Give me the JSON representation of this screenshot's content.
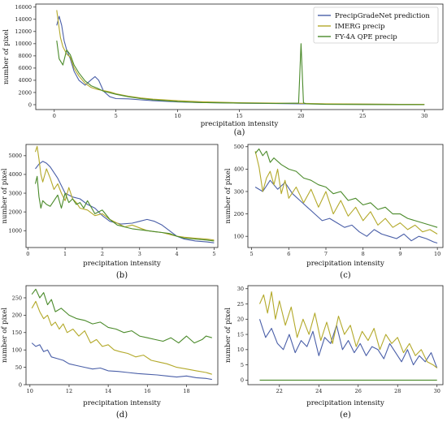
{
  "series_colors": {
    "PrecipGradeNet prediction": "#4a5fa8",
    "IMERG precip": "#b3a92a",
    "FY-4A QPE precip": "#4a8a2a"
  },
  "chart_data": [
    {
      "id": "a",
      "type": "line",
      "panel_label": "(a)",
      "xlabel": "precipitation intensity",
      "ylabel": "number of pixel",
      "xlim": [
        -1.5,
        31.5
      ],
      "ylim": [
        -800,
        16500
      ],
      "xticks": [
        0,
        5,
        10,
        15,
        20,
        25,
        30
      ],
      "yticks": [
        0,
        2000,
        4000,
        6000,
        8000,
        10000,
        12000,
        14000,
        16000
      ],
      "legend": {
        "placement": "top-right",
        "entries": [
          "PrecipGradeNet prediction",
          "IMERG precip",
          "FY-4A QPE precip"
        ]
      },
      "series": [
        {
          "name": "PrecipGradeNet prediction",
          "x": [
            0.2,
            0.4,
            0.6,
            0.8,
            1.0,
            1.3,
            1.6,
            2.0,
            2.5,
            3.0,
            3.3,
            3.6,
            4.0,
            4.5,
            5.0,
            6,
            7,
            8,
            10,
            12,
            15,
            18,
            20,
            22,
            25,
            28,
            30
          ],
          "y": [
            13000,
            14500,
            13000,
            10500,
            9000,
            7500,
            5500,
            4000,
            3200,
            4100,
            4600,
            4000,
            2200,
            1300,
            1000,
            950,
            800,
            650,
            450,
            350,
            250,
            180,
            150,
            120,
            80,
            50,
            40
          ]
        },
        {
          "name": "IMERG precip",
          "x": [
            0.2,
            0.3,
            0.5,
            0.7,
            1.0,
            1.3,
            1.6,
            2.0,
            2.5,
            3.0,
            3.5,
            4.0,
            4.5,
            5.0,
            6,
            7,
            8,
            10,
            12,
            15,
            18,
            20,
            22,
            25,
            28,
            30
          ],
          "y": [
            15500,
            14000,
            11000,
            9500,
            8300,
            7800,
            6000,
            4700,
            3500,
            2800,
            2500,
            2300,
            2100,
            1800,
            1400,
            1100,
            900,
            650,
            480,
            330,
            250,
            220,
            150,
            100,
            70,
            50
          ]
        },
        {
          "name": "FY-4A QPE precip",
          "x": [
            0.2,
            0.4,
            0.7,
            1.0,
            1.3,
            1.6,
            2.0,
            2.5,
            3.0,
            3.5,
            4.0,
            5,
            6,
            7,
            8,
            10,
            12,
            15,
            18,
            19.8,
            20.0,
            20.2,
            20.4,
            22,
            25,
            28,
            30
          ],
          "y": [
            10500,
            7500,
            6500,
            9000,
            8200,
            6500,
            5200,
            3900,
            3100,
            2700,
            2200,
            1700,
            1300,
            1000,
            800,
            500,
            350,
            250,
            200,
            250,
            10000,
            300,
            150,
            50,
            20,
            10,
            5
          ]
        }
      ]
    },
    {
      "id": "b",
      "type": "line",
      "panel_label": "(b)",
      "xlabel": "precipitation intensity",
      "ylabel": "number of pixel",
      "xlim": [
        -0.05,
        5.1
      ],
      "ylim": [
        100,
        5600
      ],
      "xticks": [
        0,
        1,
        2,
        3,
        4,
        5
      ],
      "yticks": [
        1000,
        2000,
        3000,
        4000,
        5000
      ],
      "series": [
        {
          "name": "PrecipGradeNet prediction",
          "x": [
            0.2,
            0.3,
            0.4,
            0.5,
            0.6,
            0.8,
            1.0,
            1.2,
            1.4,
            1.6,
            1.8,
            2.0,
            2.2,
            2.5,
            2.8,
            3.0,
            3.2,
            3.4,
            3.6,
            3.8,
            4.0,
            4.2,
            4.5,
            4.8,
            5.0
          ],
          "y": [
            4300,
            4550,
            4700,
            4600,
            4400,
            3800,
            3000,
            2800,
            2700,
            2400,
            2200,
            1800,
            1500,
            1350,
            1400,
            1500,
            1600,
            1500,
            1300,
            1000,
            700,
            550,
            450,
            400,
            350
          ]
        },
        {
          "name": "IMERG precip",
          "x": [
            0.2,
            0.25,
            0.3,
            0.35,
            0.4,
            0.5,
            0.6,
            0.7,
            0.8,
            0.9,
            1.0,
            1.1,
            1.2,
            1.3,
            1.4,
            1.6,
            1.8,
            2.0,
            2.2,
            2.4,
            2.6,
            2.8,
            3.0,
            3.2,
            3.4,
            3.6,
            3.8,
            4.0,
            4.2,
            4.5,
            4.8,
            5.0
          ],
          "y": [
            5200,
            5500,
            4800,
            4000,
            3600,
            4300,
            3800,
            3200,
            3500,
            3000,
            2600,
            3300,
            2700,
            2500,
            2200,
            2100,
            1800,
            1900,
            1600,
            1400,
            1200,
            1300,
            1150,
            1000,
            950,
            900,
            800,
            700,
            650,
            600,
            550,
            500
          ]
        },
        {
          "name": "FY-4A QPE precip",
          "x": [
            0.2,
            0.25,
            0.3,
            0.35,
            0.4,
            0.5,
            0.6,
            0.7,
            0.8,
            0.9,
            1.0,
            1.1,
            1.2,
            1.3,
            1.4,
            1.5,
            1.6,
            1.8,
            2.0,
            2.2,
            2.4,
            2.6,
            2.8,
            3.0,
            3.2,
            3.4,
            3.6,
            3.8,
            4.0,
            4.2,
            4.5,
            4.8,
            5.0
          ],
          "y": [
            3500,
            3900,
            2800,
            2200,
            2600,
            2400,
            2300,
            2600,
            2900,
            2200,
            3000,
            2500,
            2700,
            2400,
            2500,
            2200,
            2600,
            1900,
            2100,
            1600,
            1300,
            1200,
            1100,
            1050,
            1000,
            950,
            900,
            850,
            700,
            600,
            550,
            500,
            450
          ]
        }
      ]
    },
    {
      "id": "c",
      "type": "line",
      "panel_label": "(c)",
      "xlabel": "precipitation intensity",
      "ylabel": "number of pixel",
      "xlim": [
        4.9,
        10.15
      ],
      "ylim": [
        50,
        510
      ],
      "xticks": [
        5,
        6,
        7,
        8,
        9,
        10
      ],
      "yticks": [
        100,
        200,
        300,
        400,
        500
      ],
      "series": [
        {
          "name": "PrecipGradeNet prediction",
          "x": [
            5.1,
            5.3,
            5.5,
            5.7,
            5.9,
            6.1,
            6.3,
            6.5,
            6.7,
            6.9,
            7.1,
            7.3,
            7.5,
            7.7,
            7.9,
            8.1,
            8.3,
            8.5,
            8.7,
            8.9,
            9.1,
            9.3,
            9.5,
            9.7,
            9.9,
            10.0
          ],
          "y": [
            320,
            300,
            350,
            310,
            340,
            290,
            260,
            230,
            200,
            170,
            180,
            160,
            140,
            150,
            120,
            100,
            130,
            110,
            100,
            90,
            110,
            80,
            100,
            90,
            75,
            70
          ]
        },
        {
          "name": "IMERG precip",
          "x": [
            5.1,
            5.2,
            5.3,
            5.4,
            5.5,
            5.6,
            5.7,
            5.8,
            5.9,
            6.0,
            6.2,
            6.4,
            6.6,
            6.8,
            7.0,
            7.2,
            7.4,
            7.6,
            7.8,
            8.0,
            8.2,
            8.4,
            8.6,
            8.8,
            9.0,
            9.2,
            9.4,
            9.6,
            9.8,
            10.0
          ],
          "y": [
            480,
            410,
            300,
            360,
            390,
            330,
            400,
            290,
            350,
            270,
            320,
            250,
            310,
            230,
            300,
            200,
            260,
            190,
            230,
            170,
            210,
            150,
            180,
            140,
            160,
            130,
            150,
            120,
            130,
            110
          ]
        },
        {
          "name": "FY-4A QPE precip",
          "x": [
            5.1,
            5.2,
            5.3,
            5.4,
            5.5,
            5.6,
            5.8,
            6.0,
            6.2,
            6.4,
            6.6,
            6.8,
            7.0,
            7.2,
            7.4,
            7.6,
            7.8,
            8.0,
            8.2,
            8.4,
            8.6,
            8.8,
            9.0,
            9.2,
            9.4,
            9.6,
            9.8,
            10.0
          ],
          "y": [
            470,
            490,
            460,
            480,
            430,
            450,
            420,
            400,
            390,
            360,
            350,
            330,
            320,
            290,
            300,
            260,
            270,
            240,
            250,
            220,
            230,
            200,
            200,
            180,
            170,
            160,
            150,
            140
          ]
        }
      ]
    },
    {
      "id": "d",
      "type": "line",
      "panel_label": "(d)",
      "xlabel": "precipitation intensity",
      "ylabel": "number of pixel",
      "xlim": [
        9.8,
        19.6
      ],
      "ylim": [
        0,
        285
      ],
      "xticks": [
        10,
        12,
        14,
        16,
        18
      ],
      "yticks": [
        0,
        50,
        100,
        150,
        200,
        250
      ],
      "series": [
        {
          "name": "PrecipGradeNet prediction",
          "x": [
            10.1,
            10.3,
            10.5,
            10.7,
            10.9,
            11.1,
            11.4,
            11.7,
            12.0,
            12.4,
            12.8,
            13.2,
            13.6,
            14.0,
            14.5,
            15.0,
            15.5,
            16.0,
            16.5,
            17.0,
            17.5,
            18.0,
            18.5,
            19.0,
            19.3
          ],
          "y": [
            120,
            110,
            115,
            95,
            100,
            80,
            75,
            70,
            60,
            55,
            50,
            45,
            48,
            40,
            38,
            35,
            32,
            30,
            28,
            25,
            22,
            25,
            20,
            18,
            15
          ]
        },
        {
          "name": "IMERG precip",
          "x": [
            10.1,
            10.3,
            10.5,
            10.7,
            10.9,
            11.1,
            11.3,
            11.5,
            11.7,
            11.9,
            12.2,
            12.5,
            12.8,
            13.1,
            13.4,
            13.7,
            14.0,
            14.3,
            14.6,
            15.0,
            15.4,
            15.8,
            16.2,
            16.6,
            17.0,
            17.5,
            18.0,
            18.5,
            19.0,
            19.3
          ],
          "y": [
            220,
            240,
            210,
            190,
            200,
            170,
            180,
            160,
            175,
            150,
            160,
            140,
            155,
            120,
            130,
            110,
            115,
            100,
            95,
            90,
            80,
            85,
            70,
            65,
            60,
            50,
            45,
            40,
            35,
            30
          ]
        },
        {
          "name": "FY-4A QPE precip",
          "x": [
            10.1,
            10.3,
            10.5,
            10.7,
            10.9,
            11.1,
            11.3,
            11.6,
            12.0,
            12.4,
            12.8,
            13.2,
            13.6,
            14.0,
            14.4,
            14.8,
            15.2,
            15.6,
            16.0,
            16.4,
            16.8,
            17.2,
            17.6,
            18.0,
            18.4,
            18.8,
            19.0,
            19.3
          ],
          "y": [
            260,
            275,
            250,
            265,
            230,
            245,
            210,
            220,
            200,
            190,
            185,
            175,
            180,
            165,
            160,
            150,
            155,
            140,
            135,
            130,
            125,
            135,
            120,
            140,
            120,
            130,
            140,
            135
          ]
        }
      ]
    },
    {
      "id": "e",
      "type": "line",
      "panel_label": "(e)",
      "xlabel": "precipitation intensity",
      "ylabel": "number of pixel",
      "xlim": [
        20.4,
        30.3
      ],
      "ylim": [
        -1.5,
        31
      ],
      "xticks": [
        22,
        24,
        26,
        28,
        30
      ],
      "yticks": [
        0,
        5,
        10,
        15,
        20,
        25,
        30
      ],
      "series": [
        {
          "name": "PrecipGradeNet prediction",
          "x": [
            21.0,
            21.3,
            21.6,
            21.9,
            22.2,
            22.5,
            22.8,
            23.1,
            23.4,
            23.7,
            24.0,
            24.3,
            24.6,
            24.9,
            25.2,
            25.5,
            25.8,
            26.1,
            26.4,
            26.7,
            27.0,
            27.3,
            27.6,
            27.9,
            28.2,
            28.5,
            28.8,
            29.1,
            29.4,
            29.7,
            30.0
          ],
          "y": [
            20,
            14,
            17,
            12,
            10,
            15,
            9,
            13,
            11,
            16,
            8,
            14,
            12,
            18,
            10,
            13,
            9,
            12,
            8,
            11,
            10,
            7,
            12,
            9,
            6,
            10,
            5,
            8,
            6,
            9,
            4
          ]
        },
        {
          "name": "IMERG precip",
          "x": [
            21.0,
            21.2,
            21.4,
            21.6,
            21.8,
            22.0,
            22.3,
            22.6,
            22.9,
            23.2,
            23.5,
            23.8,
            24.1,
            24.4,
            24.7,
            25.0,
            25.3,
            25.6,
            25.9,
            26.2,
            26.5,
            26.8,
            27.1,
            27.4,
            27.7,
            28.0,
            28.3,
            28.6,
            28.9,
            29.2,
            29.5,
            29.8,
            30.0
          ],
          "y": [
            25,
            28,
            22,
            29,
            20,
            26,
            18,
            24,
            14,
            20,
            15,
            22,
            13,
            19,
            12,
            21,
            15,
            18,
            11,
            16,
            13,
            17,
            10,
            15,
            12,
            14,
            9,
            12,
            8,
            10,
            6,
            5,
            4
          ]
        },
        {
          "name": "FY-4A QPE precip",
          "x": [
            21.0,
            30.0
          ],
          "y": [
            0,
            0
          ]
        }
      ]
    }
  ]
}
